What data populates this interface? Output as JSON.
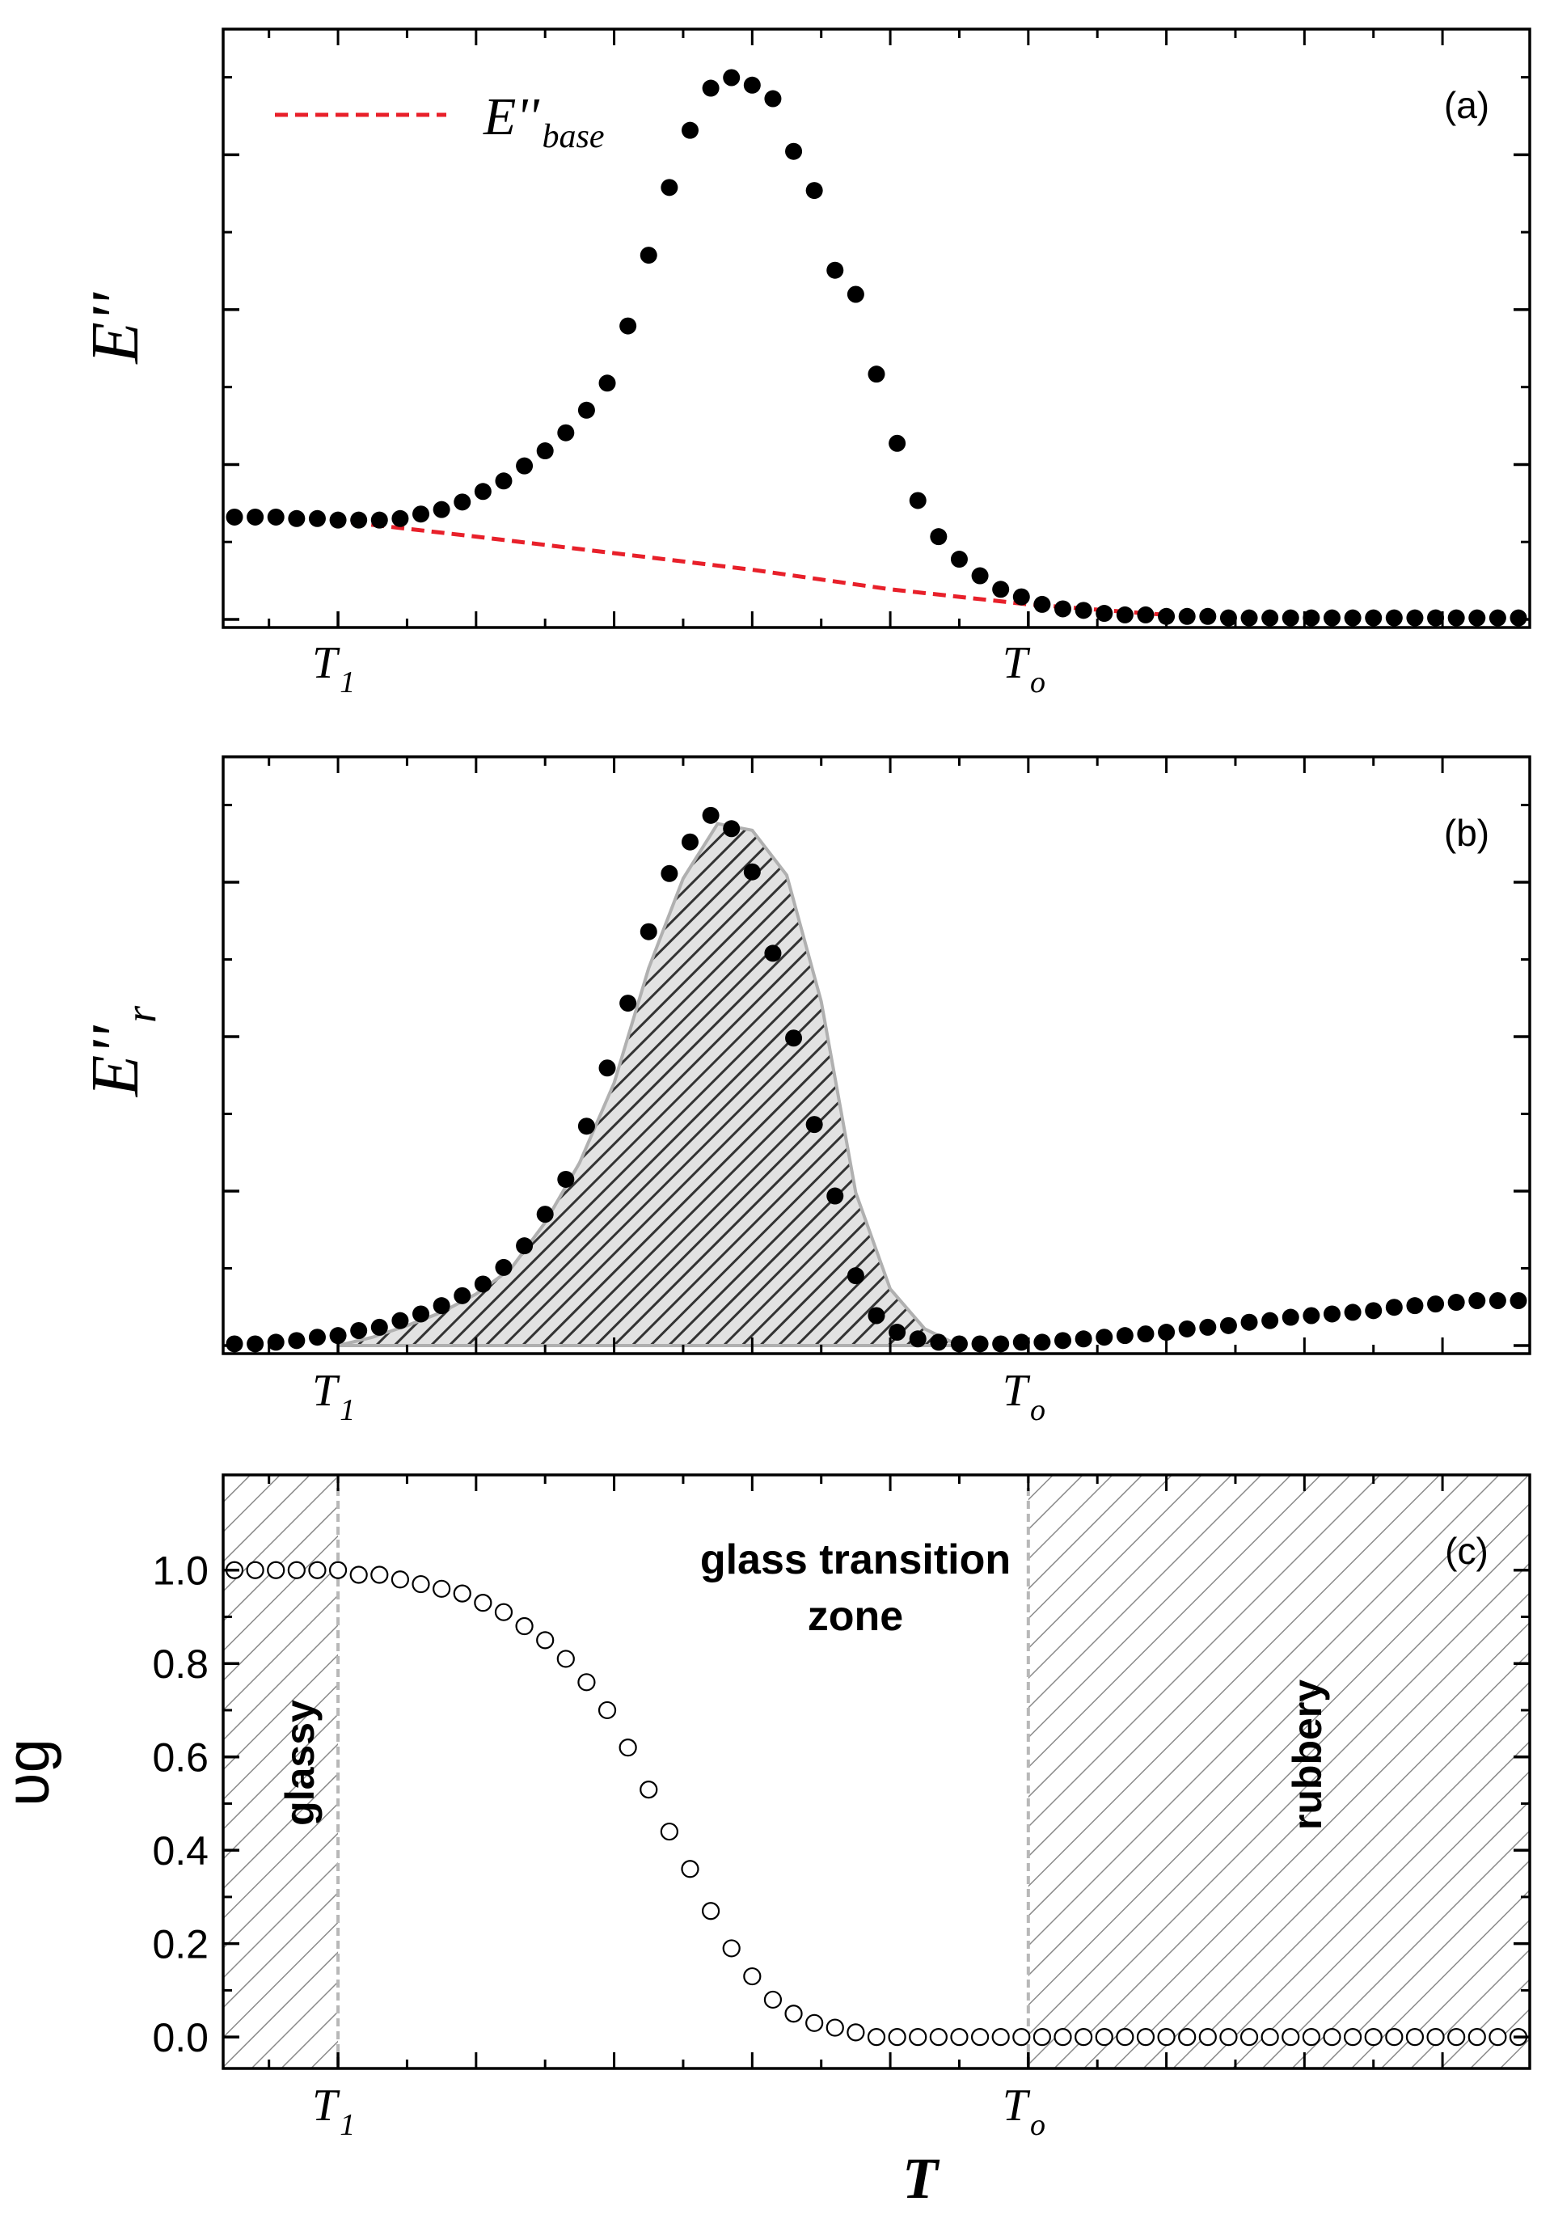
{
  "chart_data": [
    {
      "panel": "a",
      "type": "scatter",
      "panel_label": "(a)",
      "ylabel": "E''",
      "xlabel": "",
      "x_ticks_labeled": [
        {
          "label": "T",
          "sub": "1",
          "x": 1
        },
        {
          "label": "T",
          "sub": "o",
          "x": 11
        }
      ],
      "legend": {
        "label": "E''",
        "label_sub": "base",
        "placement": "top-left",
        "color": "#e8202a",
        "style": "dashed"
      },
      "xlim": [
        -0.5,
        18.1
      ],
      "ylim": [
        0,
        3.6
      ],
      "grid": false,
      "series": [
        {
          "kind": "points",
          "marker": "filled-circle",
          "color": "#000000",
          "x": [
            -0.5,
            -0.2,
            0.1,
            0.4,
            0.7,
            1.0,
            1.3,
            1.6,
            1.9,
            2.2,
            2.5,
            2.8,
            3.1,
            3.4,
            3.7,
            4.0,
            4.3,
            4.6,
            4.9,
            5.2,
            5.5,
            5.8,
            6.1,
            6.4,
            6.7,
            7.0,
            7.3,
            7.6,
            7.9,
            8.2,
            8.5,
            8.8,
            9.1,
            9.4,
            9.7,
            10.0,
            10.3,
            10.6,
            10.9,
            11.2,
            11.5,
            11.8,
            12.1,
            12.4,
            12.7,
            13.0,
            13.3,
            13.6,
            13.9,
            14.2,
            14.5,
            14.8,
            15.1,
            15.4,
            15.7,
            16.0,
            16.3,
            16.6,
            16.9,
            17.2,
            17.5,
            17.8,
            18.1
          ],
          "y": [
            0.68,
            0.68,
            0.68,
            0.67,
            0.67,
            0.66,
            0.66,
            0.66,
            0.67,
            0.7,
            0.73,
            0.78,
            0.85,
            0.92,
            1.02,
            1.12,
            1.24,
            1.39,
            1.57,
            1.95,
            2.42,
            2.87,
            3.25,
            3.53,
            3.6,
            3.55,
            3.46,
            3.11,
            2.85,
            2.32,
            2.16,
            1.63,
            1.17,
            0.79,
            0.55,
            0.4,
            0.29,
            0.2,
            0.15,
            0.1,
            0.07,
            0.06,
            0.04,
            0.03,
            0.03,
            0.02,
            0.02,
            0.02,
            0.01,
            0.01,
            0.01,
            0.01,
            0.01,
            0.01,
            0.01,
            0.01,
            0.01,
            0.01,
            0.01,
            0.01,
            0.01,
            0.01,
            0.01
          ]
        },
        {
          "kind": "line",
          "name": "E''base",
          "color": "#e8202a",
          "style": "dashed",
          "x": [
            0.9,
            3.0,
            5.0,
            7.0,
            9.0,
            11.0,
            13.0
          ],
          "y": [
            0.66,
            0.55,
            0.44,
            0.33,
            0.2,
            0.1,
            0.03
          ]
        }
      ]
    },
    {
      "panel": "b",
      "type": "area",
      "panel_label": "(b)",
      "ylabel": "E''",
      "ylabel_sub": "r",
      "xlabel": "",
      "x_ticks_labeled": [
        {
          "label": "T",
          "sub": "1",
          "x": 1
        },
        {
          "label": "T",
          "sub": "o",
          "x": 11
        }
      ],
      "xlim": [
        -0.5,
        18.1
      ],
      "ylim": [
        0,
        3.25
      ],
      "grid": false,
      "series": [
        {
          "kind": "points",
          "marker": "filled-circle",
          "color": "#000000",
          "x": [
            -0.5,
            -0.2,
            0.1,
            0.4,
            0.7,
            1.0,
            1.3,
            1.6,
            1.9,
            2.2,
            2.5,
            2.8,
            3.1,
            3.4,
            3.7,
            4.0,
            4.3,
            4.6,
            4.9,
            5.2,
            5.5,
            5.8,
            6.1,
            6.4,
            6.7,
            7.0,
            7.3,
            7.6,
            7.9,
            8.2,
            8.5,
            8.8,
            9.1,
            9.4,
            9.7,
            10.0,
            10.3,
            10.6,
            10.9,
            11.2,
            11.5,
            11.8,
            12.1,
            12.4,
            12.7,
            13.0,
            13.3,
            13.6,
            13.9,
            14.2,
            14.5,
            14.8,
            15.1,
            15.4,
            15.7,
            16.0,
            16.3,
            16.6,
            16.9,
            17.2,
            17.5,
            17.8,
            18.1
          ],
          "y": [
            0.01,
            0.01,
            0.02,
            0.03,
            0.05,
            0.06,
            0.09,
            0.11,
            0.15,
            0.19,
            0.24,
            0.3,
            0.37,
            0.47,
            0.6,
            0.79,
            1.0,
            1.32,
            1.67,
            2.06,
            2.49,
            2.84,
            3.03,
            3.19,
            3.11,
            2.85,
            2.36,
            1.85,
            1.33,
            0.9,
            0.42,
            0.18,
            0.08,
            0.04,
            0.02,
            0.01,
            0.01,
            0.01,
            0.02,
            0.02,
            0.03,
            0.04,
            0.05,
            0.06,
            0.07,
            0.08,
            0.1,
            0.11,
            0.12,
            0.14,
            0.15,
            0.17,
            0.18,
            0.19,
            0.2,
            0.21,
            0.23,
            0.24,
            0.25,
            0.26,
            0.27,
            0.27,
            0.27
          ]
        },
        {
          "kind": "filled-area",
          "fill": "hatched",
          "edge_color": "#b0b0b0",
          "x": [
            1.0,
            1.5,
            2.0,
            2.5,
            3.0,
            3.5,
            4.0,
            4.5,
            5.0,
            5.5,
            6.0,
            6.5,
            7.0,
            7.5,
            8.0,
            8.5,
            9.0,
            9.5,
            10.0
          ],
          "y": [
            0.0,
            0.05,
            0.12,
            0.2,
            0.31,
            0.46,
            0.74,
            1.1,
            1.58,
            2.27,
            2.81,
            3.14,
            3.1,
            2.83,
            2.07,
            0.92,
            0.34,
            0.1,
            0.0
          ]
        }
      ]
    },
    {
      "panel": "c",
      "type": "scatter",
      "panel_label": "(c)",
      "ylabel": "υg",
      "xlabel": "T",
      "x_ticks_labeled": [
        {
          "label": "T",
          "sub": "1",
          "x": 1
        },
        {
          "label": "T",
          "sub": "o",
          "x": 11
        }
      ],
      "xlim": [
        -0.5,
        18.1
      ],
      "ylim": [
        -0.05,
        1.1
      ],
      "yticks": [
        0.0,
        0.2,
        0.4,
        0.6,
        0.8,
        1.0
      ],
      "ytick_labels": [
        "0.0",
        "0.2",
        "0.4",
        "0.6",
        "0.8",
        "1.0"
      ],
      "grid": false,
      "regions": [
        {
          "name": "glassy",
          "label": "glassy",
          "x_from": -0.5,
          "x_to": 1.0,
          "fill": "hatched"
        },
        {
          "name": "glass-transition-zone",
          "label": "glass transition zone",
          "x_from": 1.0,
          "x_to": 11.0,
          "fill": "none"
        },
        {
          "name": "rubbery",
          "label": "rubbery",
          "x_from": 11.0,
          "x_to": 18.1,
          "fill": "hatched"
        }
      ],
      "annotations": [
        "glass transition",
        "zone",
        "glassy",
        "rubbery"
      ],
      "series": [
        {
          "kind": "points",
          "marker": "open-circle",
          "color": "#000000",
          "x": [
            -0.5,
            -0.2,
            0.1,
            0.4,
            0.7,
            1.0,
            1.3,
            1.6,
            1.9,
            2.2,
            2.5,
            2.8,
            3.1,
            3.4,
            3.7,
            4.0,
            4.3,
            4.6,
            4.9,
            5.2,
            5.5,
            5.8,
            6.1,
            6.4,
            6.7,
            7.0,
            7.3,
            7.6,
            7.9,
            8.2,
            8.5,
            8.8,
            9.1,
            9.4,
            9.7,
            10.0,
            10.3,
            10.6,
            10.9,
            11.2,
            11.5,
            11.8,
            12.1,
            12.4,
            12.7,
            13.0,
            13.3,
            13.6,
            13.9,
            14.2,
            14.5,
            14.8,
            15.1,
            15.4,
            15.7,
            16.0,
            16.3,
            16.6,
            16.9,
            17.2,
            17.5,
            17.8,
            18.1
          ],
          "y": [
            1.0,
            1.0,
            1.0,
            1.0,
            1.0,
            1.0,
            0.99,
            0.99,
            0.98,
            0.97,
            0.96,
            0.95,
            0.93,
            0.91,
            0.88,
            0.85,
            0.81,
            0.76,
            0.7,
            0.62,
            0.53,
            0.44,
            0.36,
            0.27,
            0.19,
            0.13,
            0.08,
            0.05,
            0.03,
            0.02,
            0.01,
            0.0,
            0.0,
            0.0,
            0.0,
            0.0,
            0.0,
            0.0,
            0.0,
            0.0,
            0.0,
            0.0,
            0.0,
            0.0,
            0.0,
            0.0,
            0.0,
            0.0,
            0.0,
            0.0,
            0.0,
            0.0,
            0.0,
            0.0,
            0.0,
            0.0,
            0.0,
            0.0,
            0.0,
            0.0,
            0.0,
            0.0,
            0.0
          ]
        }
      ]
    }
  ]
}
